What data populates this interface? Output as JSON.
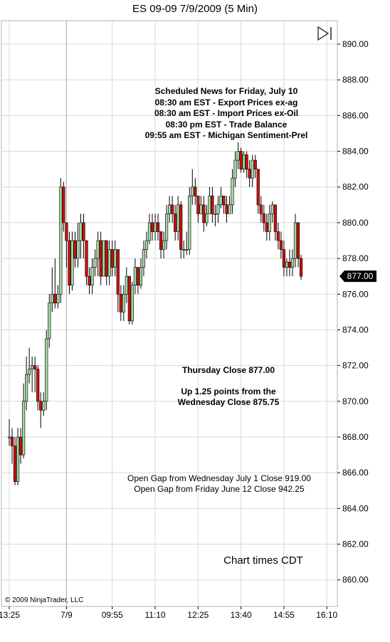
{
  "window": {
    "title": "ES 09-09  7/9/2009 (5 Min)"
  },
  "colors": {
    "up": "#9fd89f",
    "down": "#cc1010",
    "wick": "#000000",
    "grid": "#d8d8d8",
    "price_tag_bg": "#000000",
    "price_tag_fg": "#ffffff"
  },
  "icons": {
    "scroll_to_end": "play-bar-icon"
  },
  "annotations": {
    "news": [
      "Scheduled News for Friday, July 10",
      "08:30 am EST - Export Prices ex-ag",
      "08:30 am EST - Import Prices ex-Oil",
      "08:30 pm EST - Trade Balance",
      "09:55 am EST - Michigan Sentiment-Prel"
    ],
    "close_lines": [
      "Thursday Close 877.00",
      "",
      "Up 1.25 points from the",
      "Wednesday Close 875.75"
    ],
    "gap_lines": [
      "Open Gap from Wednesday July 1 Close 919.00",
      "Open Gap from Friday June 12 Close 942.25"
    ],
    "times_note": "Chart times CDT",
    "copyright": "© 2009 NinjaTrader, LLC"
  },
  "chart_data": {
    "type": "candlestick",
    "title": "ES 09-09  7/9/2009 (5 Min)",
    "ylim": [
      858.5,
      891.2
    ],
    "y_ticks": [
      "860.00",
      "862.00",
      "864.00",
      "866.00",
      "868.00",
      "870.00",
      "872.00",
      "874.00",
      "876.00",
      "878.00",
      "880.00",
      "882.00",
      "884.00",
      "886.00",
      "888.00",
      "890.00"
    ],
    "x_labels": [
      {
        "label": "13:25",
        "bar": 0
      },
      {
        "label": "7/9",
        "bar": 20
      },
      {
        "label": "09:55",
        "bar": 36
      },
      {
        "label": "11:10",
        "bar": 51
      },
      {
        "label": "12:25",
        "bar": 66
      },
      {
        "label": "13:40",
        "bar": 81
      },
      {
        "label": "14:55",
        "bar": 96
      },
      {
        "label": "16:10",
        "bar": 111
      }
    ],
    "session_break_bar": 20,
    "last_price": "877.00",
    "last_value": 877.0,
    "bars": [
      [
        0,
        868,
        868,
        869,
        867.5
      ],
      [
        1,
        868,
        867.5,
        868.5,
        866.5
      ],
      [
        2,
        867.5,
        865.5,
        868,
        865.3
      ],
      [
        3,
        865.5,
        868,
        868.5,
        865.3
      ],
      [
        4,
        868,
        867,
        868.5,
        866.5
      ],
      [
        5,
        867,
        870,
        871,
        866.8
      ],
      [
        6,
        870,
        871.5,
        872.5,
        869.5
      ],
      [
        7,
        871.5,
        871.8,
        873,
        871
      ],
      [
        8,
        871.8,
        872,
        872.5,
        870.5
      ],
      [
        9,
        872,
        871.8,
        872.5,
        870.5
      ],
      [
        10,
        871.8,
        870,
        872,
        869.5
      ],
      [
        11,
        870,
        869.5,
        870.5,
        868.5
      ],
      [
        12,
        869.5,
        870,
        870.5,
        869.2
      ],
      [
        13,
        870,
        873.5,
        874,
        869.5
      ],
      [
        14,
        873.5,
        875.5,
        876,
        873
      ],
      [
        15,
        875.5,
        876,
        877.5,
        875
      ],
      [
        16,
        876,
        875.5,
        878,
        875.2
      ],
      [
        17,
        875.5,
        876,
        876.5,
        875.2
      ],
      [
        18,
        876,
        882,
        882.5,
        875.5
      ],
      [
        19,
        882,
        880,
        882.3,
        879.5
      ],
      [
        20,
        880,
        879,
        880,
        877.5
      ],
      [
        21,
        879,
        876.5,
        879.5,
        876
      ],
      [
        22,
        876.5,
        879,
        879.5,
        876.2
      ],
      [
        23,
        879,
        878,
        879.5,
        877.5
      ],
      [
        24,
        878,
        879,
        880,
        877.5
      ],
      [
        25,
        879,
        880,
        880.5,
        878
      ],
      [
        26,
        880,
        879,
        880.5,
        878
      ],
      [
        27,
        879,
        877,
        879,
        876.5
      ],
      [
        28,
        877,
        876.5,
        877.5,
        876
      ],
      [
        29,
        876.5,
        877.5,
        878,
        876
      ],
      [
        30,
        877.5,
        878,
        878.5,
        877
      ],
      [
        31,
        878,
        879,
        879.5,
        877
      ],
      [
        32,
        879,
        877,
        879.5,
        876.5
      ],
      [
        33,
        877,
        879,
        879,
        877
      ],
      [
        34,
        879,
        877,
        879,
        876.5
      ],
      [
        35,
        877,
        878.5,
        879,
        876.5
      ],
      [
        36,
        878.5,
        877.5,
        879,
        877
      ],
      [
        37,
        877.5,
        878.5,
        879,
        877
      ],
      [
        38,
        878.5,
        876,
        878.5,
        875
      ],
      [
        39,
        876,
        875,
        876.5,
        874.5
      ],
      [
        40,
        875,
        876,
        876.5,
        874.5
      ],
      [
        41,
        876,
        877,
        877.5,
        875.5
      ],
      [
        42,
        877,
        874.5,
        877,
        874.3
      ],
      [
        43,
        874.5,
        876.5,
        876.7,
        874.3
      ],
      [
        44,
        876.5,
        877.5,
        878,
        876
      ],
      [
        45,
        877.5,
        876.5,
        877.5,
        876
      ],
      [
        46,
        876.5,
        877.5,
        878,
        876.3
      ],
      [
        47,
        877.5,
        878.5,
        879,
        877
      ],
      [
        48,
        878.5,
        879,
        879.5,
        878
      ],
      [
        49,
        879,
        880,
        880.5,
        878.8
      ],
      [
        50,
        880,
        879.5,
        880.5,
        879
      ],
      [
        51,
        879.5,
        880,
        880.5,
        879
      ],
      [
        52,
        880,
        879.5,
        880.5,
        879
      ],
      [
        53,
        879.5,
        878.5,
        879.5,
        878
      ],
      [
        54,
        878.5,
        879,
        879.5,
        878
      ],
      [
        55,
        879,
        880.5,
        881,
        878.5
      ],
      [
        56,
        880.5,
        881,
        881.5,
        880
      ],
      [
        57,
        881,
        880.5,
        881.5,
        880
      ],
      [
        58,
        880.5,
        879.5,
        881,
        879
      ],
      [
        59,
        879.5,
        881,
        881.5,
        879
      ],
      [
        60,
        881,
        878.5,
        881.2,
        878
      ],
      [
        61,
        878.5,
        878.5,
        879,
        878
      ],
      [
        62,
        878.5,
        878.5,
        879.5,
        878.2
      ],
      [
        63,
        878.5,
        881.5,
        882,
        878.2
      ],
      [
        64,
        881.5,
        882,
        883,
        881
      ],
      [
        65,
        882,
        881.5,
        882.5,
        881
      ],
      [
        66,
        881.5,
        880.5,
        881.5,
        880
      ],
      [
        67,
        880.5,
        881,
        881.5,
        880.5
      ],
      [
        68,
        881,
        880,
        881.5,
        879.5
      ],
      [
        69,
        880,
        880.5,
        881,
        879.8
      ],
      [
        70,
        880.5,
        881.5,
        882,
        880.5
      ],
      [
        71,
        881.5,
        880.5,
        882,
        880
      ],
      [
        72,
        880.5,
        880.5,
        881,
        879.8
      ],
      [
        73,
        880.5,
        881,
        881.5,
        880
      ],
      [
        74,
        881,
        881.5,
        882,
        880.8
      ],
      [
        75,
        881.5,
        881,
        881.5,
        880.5
      ],
      [
        76,
        881,
        880.5,
        881.5,
        880
      ],
      [
        77,
        880.5,
        881,
        881.5,
        880.5
      ],
      [
        78,
        881,
        882.5,
        883,
        880.5
      ],
      [
        79,
        882.5,
        883.5,
        884,
        882
      ],
      [
        80,
        883.5,
        884,
        884.5,
        883
      ],
      [
        81,
        884,
        883,
        884.2,
        882.8
      ],
      [
        82,
        883,
        883.8,
        884,
        882.8
      ],
      [
        83,
        883.8,
        883,
        884,
        882.5
      ],
      [
        84,
        883,
        882.5,
        883.5,
        882
      ],
      [
        85,
        882.5,
        883.5,
        883.8,
        882
      ],
      [
        86,
        883.5,
        883,
        883.8,
        882.5
      ],
      [
        87,
        883,
        881,
        883,
        880.5
      ],
      [
        88,
        881,
        880.5,
        881.5,
        880
      ],
      [
        89,
        880.5,
        880,
        881,
        879.5
      ],
      [
        90,
        880,
        879.5,
        880.5,
        879
      ],
      [
        91,
        879.5,
        880.5,
        881,
        879
      ],
      [
        92,
        880.5,
        881,
        881.2,
        880
      ],
      [
        93,
        881,
        879.5,
        881,
        879
      ],
      [
        94,
        879.5,
        879,
        880,
        878.5
      ],
      [
        95,
        879,
        878.5,
        879.5,
        878
      ],
      [
        96,
        878.5,
        877.5,
        879,
        877
      ],
      [
        97,
        877.5,
        877.8,
        878,
        877
      ],
      [
        98,
        877.8,
        877.5,
        878.5,
        877
      ],
      [
        99,
        877.5,
        878,
        878.5,
        877
      ],
      [
        100,
        878,
        880,
        880.5,
        877.5
      ],
      [
        101,
        880,
        878,
        880,
        877.5
      ],
      [
        102,
        878,
        877,
        878.2,
        876.8
      ]
    ]
  }
}
